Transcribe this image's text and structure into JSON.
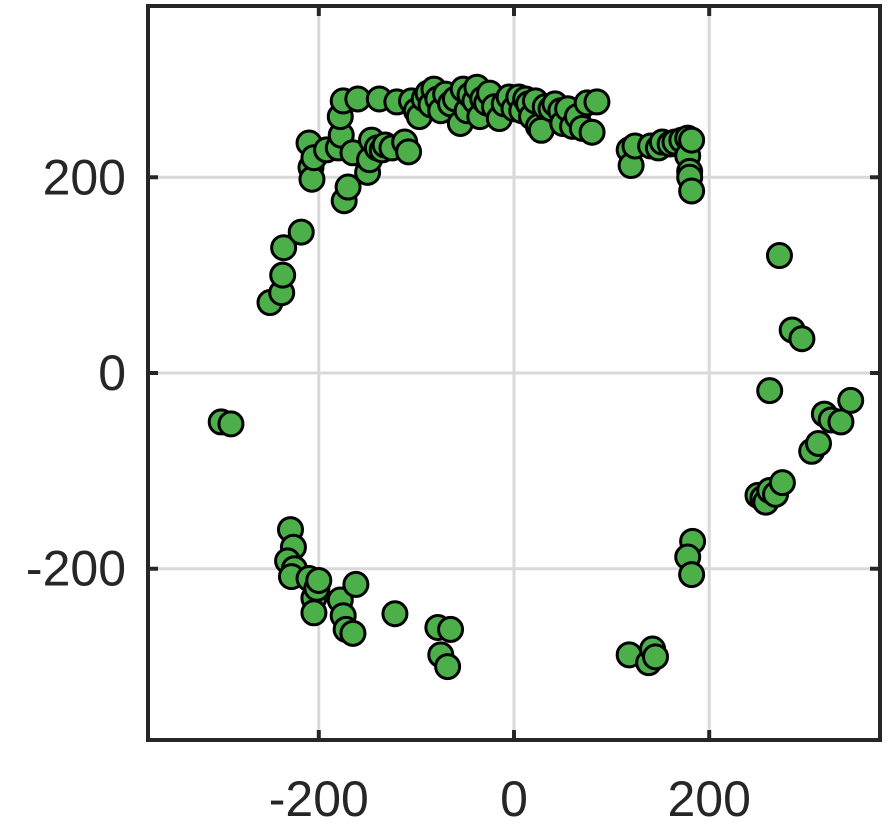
{
  "chart_data": {
    "type": "scatter",
    "title": "",
    "xlabel": "",
    "ylabel": "",
    "xlim": [
      -375,
      375
    ],
    "ylim": [
      -375,
      375
    ],
    "xticks": [
      -200,
      0,
      200
    ],
    "yticks": [
      -200,
      0,
      200
    ],
    "xtick_labels": [
      "-200",
      "0",
      "200"
    ],
    "ytick_labels": [
      "-200",
      "0",
      "200"
    ],
    "grid": true,
    "legend": "none",
    "colors": {
      "marker_fill": "#4daf4a",
      "marker_edge": "#000000",
      "axis": "#262626",
      "grid": "#d9d9d9"
    },
    "series": [
      {
        "points": [
          [
            -300,
            -50
          ],
          [
            -290,
            -52
          ],
          [
            -250,
            72
          ],
          [
            -238,
            82
          ],
          [
            -237,
            100
          ],
          [
            -236,
            128
          ],
          [
            -218,
            144
          ],
          [
            -210,
            235
          ],
          [
            -208,
            210
          ],
          [
            -207,
            198
          ],
          [
            -205,
            220
          ],
          [
            -192,
            228
          ],
          [
            -180,
            230
          ],
          [
            -177,
            243
          ],
          [
            -178,
            262
          ],
          [
            -175,
            278
          ],
          [
            -174,
            176
          ],
          [
            -170,
            190
          ],
          [
            -165,
            225
          ],
          [
            -160,
            280
          ],
          [
            -150,
            205
          ],
          [
            -148,
            218
          ],
          [
            -146,
            238
          ],
          [
            -140,
            230
          ],
          [
            -138,
            280
          ],
          [
            -135,
            228
          ],
          [
            -132,
            233
          ],
          [
            -125,
            230
          ],
          [
            -120,
            277
          ],
          [
            -112,
            236
          ],
          [
            -108,
            226
          ],
          [
            -105,
            278
          ],
          [
            -100,
            268
          ],
          [
            -97,
            262
          ],
          [
            -92,
            280
          ],
          [
            -88,
            286
          ],
          [
            -85,
            274
          ],
          [
            -82,
            290
          ],
          [
            -78,
            280
          ],
          [
            -75,
            268
          ],
          [
            -70,
            285
          ],
          [
            -65,
            275
          ],
          [
            -60,
            280
          ],
          [
            -55,
            255
          ],
          [
            -52,
            290
          ],
          [
            -48,
            268
          ],
          [
            -45,
            284
          ],
          [
            -40,
            278
          ],
          [
            -38,
            292
          ],
          [
            -35,
            262
          ],
          [
            -32,
            280
          ],
          [
            -28,
            276
          ],
          [
            -25,
            286
          ],
          [
            -20,
            272
          ],
          [
            -15,
            260
          ],
          [
            -10,
            275
          ],
          [
            -5,
            282
          ],
          [
            0,
            270
          ],
          [
            5,
            282
          ],
          [
            8,
            268
          ],
          [
            12,
            280
          ],
          [
            15,
            275
          ],
          [
            18,
            262
          ],
          [
            22,
            278
          ],
          [
            25,
            252
          ],
          [
            28,
            248
          ],
          [
            32,
            272
          ],
          [
            38,
            270
          ],
          [
            42,
            275
          ],
          [
            48,
            268
          ],
          [
            50,
            255
          ],
          [
            55,
            270
          ],
          [
            60,
            252
          ],
          [
            65,
            262
          ],
          [
            70,
            250
          ],
          [
            75,
            276
          ],
          [
            80,
            246
          ],
          [
            85,
            277
          ],
          [
            118,
            228
          ],
          [
            120,
            212
          ],
          [
            124,
            232
          ],
          [
            140,
            232
          ],
          [
            148,
            230
          ],
          [
            152,
            236
          ],
          [
            160,
            234
          ],
          [
            165,
            236
          ],
          [
            172,
            238
          ],
          [
            178,
            240
          ],
          [
            178,
            222
          ],
          [
            180,
            206
          ],
          [
            180,
            200
          ],
          [
            182,
            238
          ],
          [
            182,
            186
          ],
          [
            262,
            -18
          ],
          [
            272,
            120
          ],
          [
            285,
            44
          ],
          [
            295,
            35
          ],
          [
            250,
            -125
          ],
          [
            255,
            -128
          ],
          [
            258,
            -132
          ],
          [
            262,
            -120
          ],
          [
            268,
            -124
          ],
          [
            275,
            -112
          ],
          [
            305,
            -80
          ],
          [
            312,
            -72
          ],
          [
            318,
            -42
          ],
          [
            325,
            -48
          ],
          [
            335,
            -50
          ],
          [
            345,
            -28
          ],
          [
            -229,
            -160
          ],
          [
            -226,
            -178
          ],
          [
            -232,
            -192
          ],
          [
            -225,
            -200
          ],
          [
            -228,
            -208
          ],
          [
            -210,
            -210
          ],
          [
            -205,
            -230
          ],
          [
            -202,
            -220
          ],
          [
            -200,
            -212
          ],
          [
            -205,
            -245
          ],
          [
            -178,
            -232
          ],
          [
            -175,
            -248
          ],
          [
            -172,
            -262
          ],
          [
            -165,
            -266
          ],
          [
            -162,
            -216
          ],
          [
            -122,
            -246
          ],
          [
            -78,
            -260
          ],
          [
            -75,
            -288
          ],
          [
            -68,
            -300
          ],
          [
            -65,
            -262
          ],
          [
            118,
            -288
          ],
          [
            138,
            -296
          ],
          [
            142,
            -282
          ],
          [
            145,
            -290
          ],
          [
            183,
            -172
          ],
          [
            178,
            -188
          ],
          [
            182,
            -206
          ]
        ]
      }
    ]
  }
}
